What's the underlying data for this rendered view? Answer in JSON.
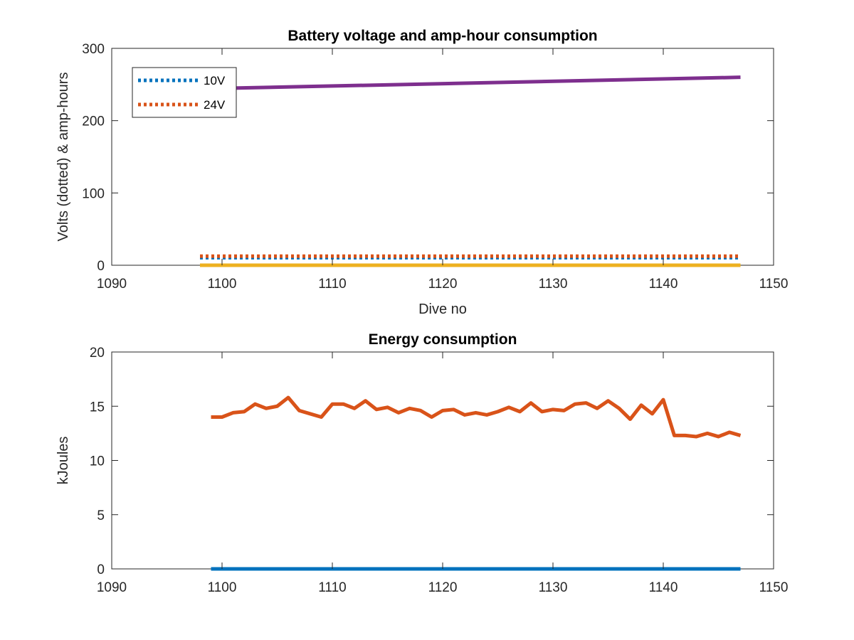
{
  "colors": {
    "blue": "#0072bd",
    "orange": "#d95319",
    "yellow": "#edb120",
    "purple": "#7e2f8e",
    "axis": "#262626"
  },
  "chart_data": [
    {
      "type": "line",
      "title": "Battery voltage and amp-hour consumption",
      "xlabel": "Dive no",
      "ylabel": "Volts (dotted) & amp-hours",
      "xlim": [
        1090,
        1150
      ],
      "ylim": [
        0,
        300
      ],
      "xticks": [
        1090,
        1100,
        1110,
        1120,
        1130,
        1140,
        1150
      ],
      "yticks": [
        0,
        100,
        200,
        300
      ],
      "grid": false,
      "legend": {
        "location": "top-left",
        "entries": [
          "10V",
          "24V"
        ]
      },
      "series": [
        {
          "name": "10V",
          "style": "dotted",
          "color": "#0072bd",
          "x": [
            1098,
            1147
          ],
          "y": [
            10.5,
            10.5
          ]
        },
        {
          "name": "24V",
          "style": "dotted",
          "color": "#d95319",
          "x": [
            1098,
            1147
          ],
          "y": [
            12.5,
            12.5
          ]
        },
        {
          "style": "solid",
          "color": "#edb120",
          "x": [
            1098,
            1147
          ],
          "y": [
            0,
            0
          ]
        },
        {
          "style": "solid",
          "color": "#7e2f8e",
          "x": [
            1098,
            1147
          ],
          "y": [
            244,
            260
          ]
        }
      ]
    },
    {
      "type": "line",
      "title": "Energy consumption",
      "xlabel": "",
      "ylabel": "kJoules",
      "xlim": [
        1090,
        1150
      ],
      "ylim": [
        0,
        20
      ],
      "xticks": [
        1090,
        1100,
        1110,
        1120,
        1130,
        1140,
        1150
      ],
      "yticks": [
        0,
        5,
        10,
        15,
        20
      ],
      "grid": false,
      "series": [
        {
          "style": "solid",
          "color": "#0072bd",
          "x": [
            1099,
            1147
          ],
          "y": [
            0,
            0
          ]
        },
        {
          "style": "solid",
          "color": "#d95319",
          "x": [
            1099,
            1100,
            1101,
            1102,
            1103,
            1104,
            1105,
            1106,
            1107,
            1108,
            1109,
            1110,
            1111,
            1112,
            1113,
            1114,
            1115,
            1116,
            1117,
            1118,
            1119,
            1120,
            1121,
            1122,
            1123,
            1124,
            1125,
            1126,
            1127,
            1128,
            1129,
            1130,
            1131,
            1132,
            1133,
            1134,
            1135,
            1136,
            1137,
            1138,
            1139,
            1140,
            1141,
            1142,
            1143,
            1144,
            1145,
            1146,
            1147
          ],
          "y": [
            14.0,
            14.0,
            14.4,
            14.5,
            15.2,
            14.8,
            15.0,
            15.8,
            14.6,
            14.3,
            14.0,
            15.2,
            15.2,
            14.8,
            15.5,
            14.7,
            14.9,
            14.4,
            14.8,
            14.6,
            14.0,
            14.6,
            14.7,
            14.2,
            14.4,
            14.2,
            14.5,
            14.9,
            14.5,
            15.3,
            14.5,
            14.7,
            14.6,
            15.2,
            15.3,
            14.8,
            15.5,
            14.8,
            13.8,
            15.1,
            14.3,
            15.6,
            12.3,
            12.3,
            12.2,
            12.5,
            12.2,
            12.6,
            12.3
          ]
        }
      ]
    }
  ]
}
